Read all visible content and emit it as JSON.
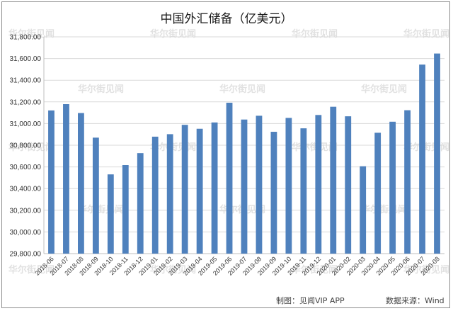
{
  "chart_data": {
    "type": "bar",
    "title": "中国外汇储备（亿美元）",
    "xlabel": "",
    "ylabel": "",
    "ylim": [
      29800,
      31800
    ],
    "yticks": [
      "29,800.00",
      "30,000.00",
      "30,200.00",
      "30,400.00",
      "30,600.00",
      "30,800.00",
      "31,000.00",
      "31,200.00",
      "31,400.00",
      "31,600.00",
      "31,800.00"
    ],
    "grid": "horizontal",
    "bar_color": "#4f81bd",
    "categories": [
      "2018-06",
      "2018-07",
      "2018-08",
      "2018-09",
      "2018-10",
      "2018-11",
      "2018-12",
      "2019-01",
      "2019-02",
      "2019-03",
      "2019-04",
      "2019-05",
      "2019-06",
      "2019-07",
      "2019-08",
      "2019-09",
      "2019-10",
      "2019-11",
      "2019-12",
      "2020-01",
      "2020-02",
      "2020-03",
      "2020-04",
      "2020-05",
      "2020-06",
      "2020-07",
      "2020-08"
    ],
    "values": [
      31121,
      31179,
      31097,
      30870,
      30531,
      30617,
      30727,
      30879,
      30902,
      30988,
      30952,
      31010,
      31192,
      31037,
      31072,
      30924,
      31052,
      30956,
      31079,
      31155,
      31067,
      30606,
      30915,
      31017,
      31123,
      31544,
      31646
    ]
  },
  "footer": {
    "source_left": "制图：见闻VIP APP",
    "source_right": "数据来源：Wind"
  },
  "watermark": "华尔街见闻"
}
